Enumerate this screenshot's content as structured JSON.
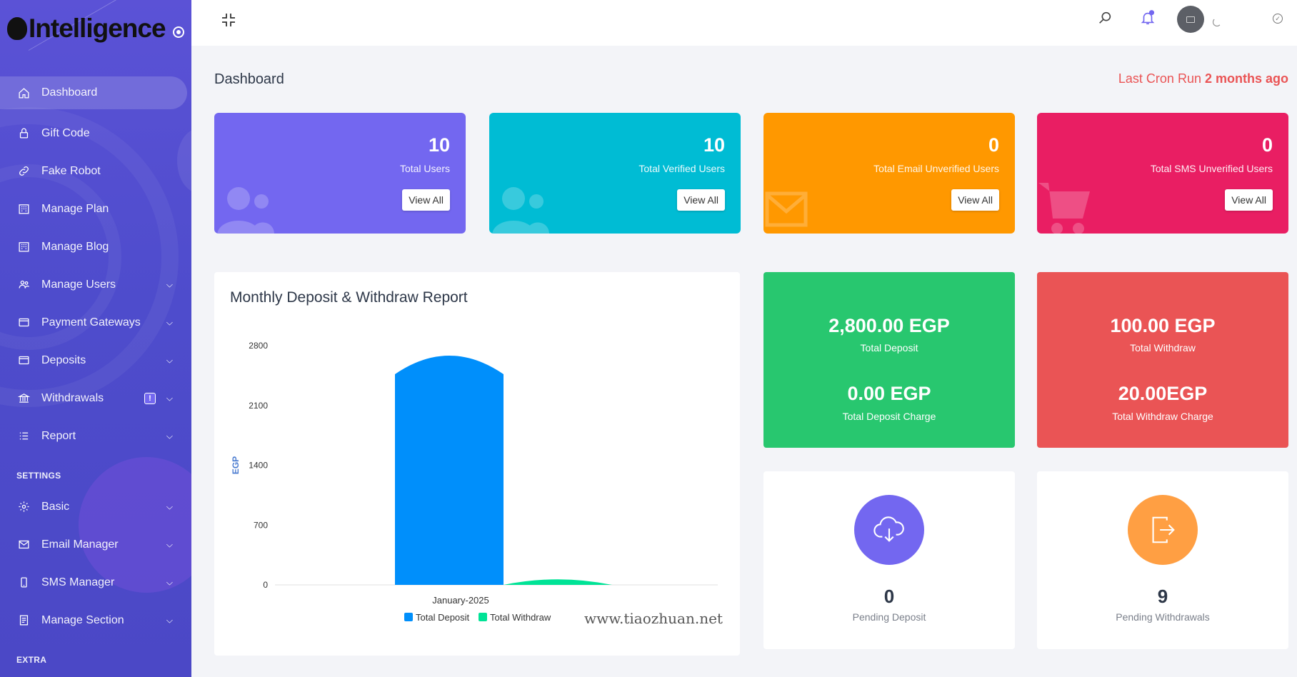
{
  "brand": {
    "name": "Intelligence"
  },
  "sidebar": {
    "items": [
      {
        "label": "Dashboard",
        "icon": "home-icon",
        "active": true
      },
      {
        "label": "Gift Code",
        "icon": "lock-icon"
      },
      {
        "label": "Fake Robot",
        "icon": "link-icon"
      },
      {
        "label": "Manage Plan",
        "icon": "building-icon"
      },
      {
        "label": "Manage Blog",
        "icon": "building-icon"
      },
      {
        "label": "Manage Users",
        "icon": "users-icon",
        "expandable": true
      },
      {
        "label": "Payment Gateways",
        "icon": "card-icon",
        "expandable": true
      },
      {
        "label": "Deposits",
        "icon": "card-icon",
        "expandable": true
      },
      {
        "label": "Withdrawals",
        "icon": "bank-icon",
        "expandable": true,
        "badge": "!"
      },
      {
        "label": "Report",
        "icon": "list-icon",
        "expandable": true
      }
    ],
    "settings_title": "SETTINGS",
    "settings_items": [
      {
        "label": "Basic",
        "icon": "gear-icon",
        "expandable": true
      },
      {
        "label": "Email Manager",
        "icon": "mail-icon",
        "expandable": true
      },
      {
        "label": "SMS Manager",
        "icon": "phone-icon",
        "expandable": true
      },
      {
        "label": "Manage Section",
        "icon": "document-icon",
        "expandable": true
      }
    ],
    "extra_title": "EXTRA"
  },
  "header": {
    "page_title": "Dashboard",
    "cron_label": "Last Cron Run",
    "cron_value": "2 months ago"
  },
  "stats": [
    {
      "value": "10",
      "label": "Total Users",
      "button": "View All",
      "color": "#7367f0"
    },
    {
      "value": "10",
      "label": "Total Verified Users",
      "button": "View All",
      "color": "#00bcd4"
    },
    {
      "value": "0",
      "label": "Total Email Unverified Users",
      "button": "View All",
      "color": "#ff9800"
    },
    {
      "value": "0",
      "label": "Total SMS Unverified Users",
      "button": "View All",
      "color": "#e91e63"
    }
  ],
  "chart": {
    "title": "Monthly Deposit & Withdraw Report",
    "watermark": "www.tiaozhuan.net"
  },
  "chart_data": {
    "type": "bar",
    "categories": [
      "January-2025"
    ],
    "series": [
      {
        "name": "Total Deposit",
        "values": [
          2800
        ],
        "color": "#008ffb"
      },
      {
        "name": "Total Withdraw",
        "values": [
          100
        ],
        "color": "#00e396"
      }
    ],
    "title": "Monthly Deposit & Withdraw Report",
    "xlabel": "",
    "ylabel": "EGP",
    "yticks": [
      0,
      700,
      1400,
      2100,
      2800
    ],
    "ylim": [
      0,
      2800
    ],
    "legend": "bottom"
  },
  "summary": {
    "deposit": {
      "value": "2,800.00 EGP",
      "label": "Total Deposit",
      "charge_value": "0.00 EGP",
      "charge_label": "Total Deposit Charge",
      "color": "#28c76f"
    },
    "withdraw": {
      "value": "100.00 EGP",
      "label": "Total Withdraw",
      "charge_value": "20.00EGP",
      "charge_label": "Total Withdraw Charge",
      "color": "#ea5455"
    }
  },
  "pending": {
    "deposit": {
      "value": "0",
      "label": "Pending Deposit",
      "color": "#7367f0",
      "icon": "cloud-download-icon"
    },
    "withdrawals": {
      "value": "9",
      "label": "Pending Withdrawals",
      "color": "#ff9f43",
      "icon": "sign-out-icon"
    }
  }
}
